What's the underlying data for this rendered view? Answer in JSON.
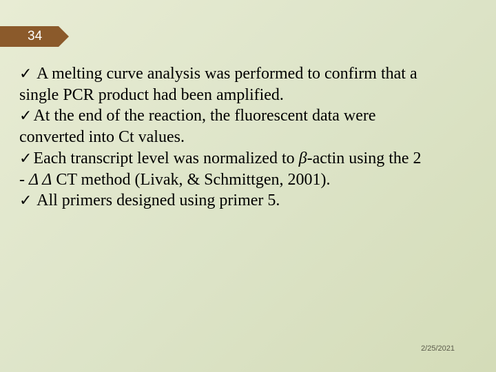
{
  "slide": {
    "number": "34",
    "number_bg_color": "#8b5a2b",
    "number_text_color": "#ffffff",
    "background_gradient_start": "#e8ecd4",
    "background_gradient_end": "#d4dcb8",
    "content_fontsize": 24,
    "content_color": "#000000",
    "font_family": "Times New Roman"
  },
  "bullets": {
    "check_symbol": "✓",
    "b1_prefix": "✓",
    "b1_line1": " A melting curve analysis was performed to confirm that a",
    "b1_line2": "single PCR product had been amplified.",
    "b2_prefix": "✓",
    "b2_line1": "At the end of the reaction, the fluorescent data were",
    "b2_line2": "converted into Ct values.",
    "b3_prefix": "✓",
    "b3_text_before_beta": "Each transcript level was normalized to ",
    "b3_beta": "β",
    "b3_text_after_beta": "-actin using the 2",
    "b3_line2_before_delta": "- ",
    "b3_delta": "Δ Δ",
    "b3_line2_after_delta": " CT method (Livak, & Schmittgen, 2001).",
    "b4_prefix": "✓",
    "b4_text": "   All primers designed using primer 5."
  },
  "footer": {
    "date": "2/25/2021",
    "date_color": "#5a5a4a",
    "date_fontsize": 11
  }
}
